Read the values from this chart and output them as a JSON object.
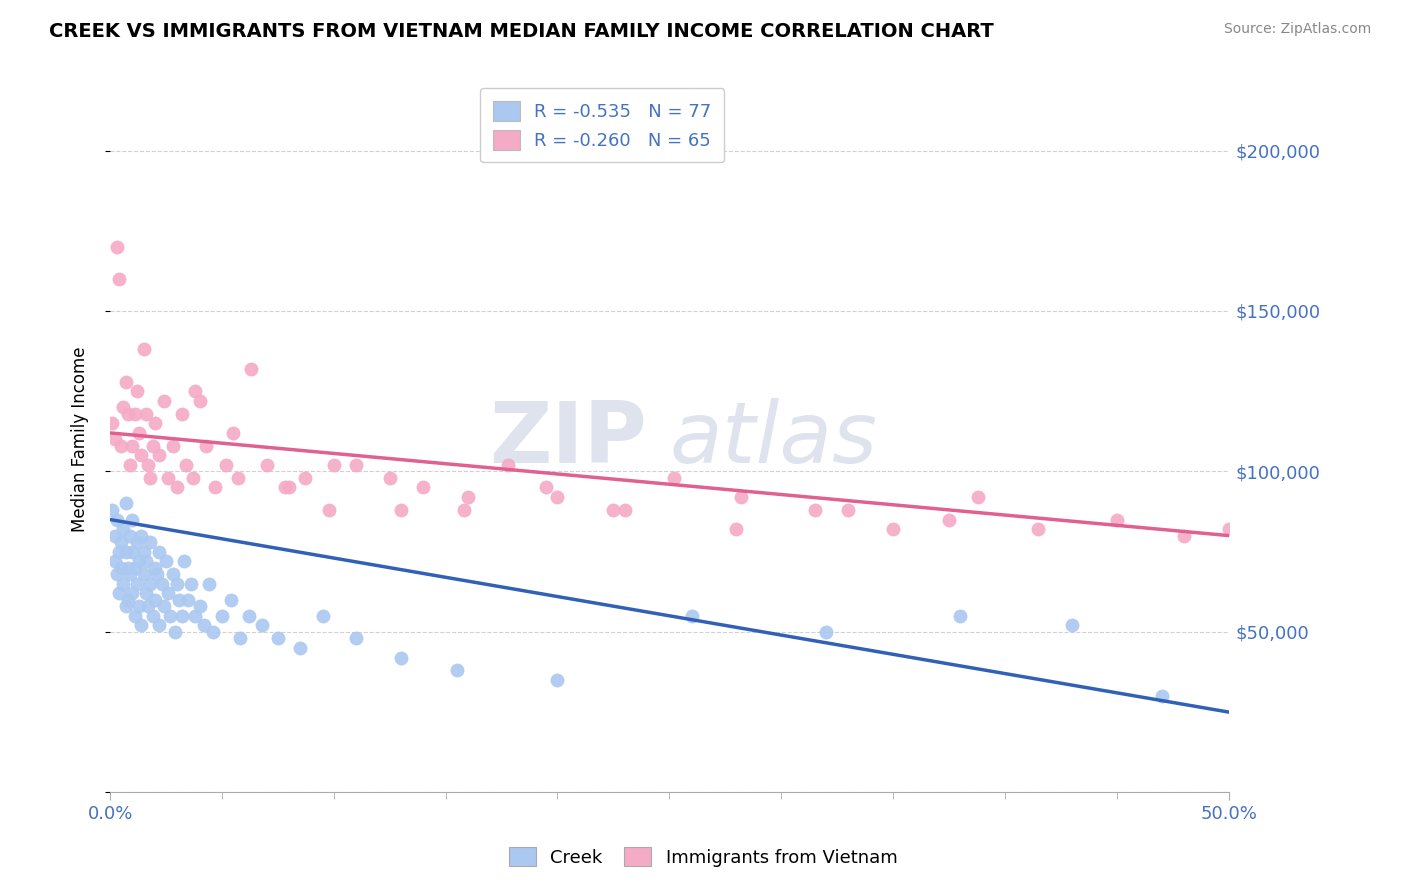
{
  "title": "CREEK VS IMMIGRANTS FROM VIETNAM MEDIAN FAMILY INCOME CORRELATION CHART",
  "source": "Source: ZipAtlas.com",
  "ylabel": "Median Family Income",
  "xmin": 0.0,
  "xmax": 0.5,
  "ymin": 0,
  "ymax": 220000,
  "yticks": [
    0,
    50000,
    100000,
    150000,
    200000
  ],
  "legend_creek_R": "-0.535",
  "legend_creek_N": "77",
  "legend_vietnam_R": "-0.260",
  "legend_vietnam_N": "65",
  "creek_color": "#aac8f0",
  "vietnam_color": "#f5aac5",
  "creek_line_color": "#3060b8",
  "vietnam_line_color": "#e06090",
  "watermark_zip": "ZIP",
  "watermark_atlas": "atlas",
  "creek_scatter_x": [
    0.001,
    0.002,
    0.002,
    0.003,
    0.003,
    0.004,
    0.004,
    0.005,
    0.005,
    0.006,
    0.006,
    0.007,
    0.007,
    0.007,
    0.008,
    0.008,
    0.009,
    0.009,
    0.01,
    0.01,
    0.01,
    0.011,
    0.011,
    0.012,
    0.012,
    0.013,
    0.013,
    0.014,
    0.014,
    0.015,
    0.015,
    0.016,
    0.016,
    0.017,
    0.018,
    0.018,
    0.019,
    0.02,
    0.02,
    0.021,
    0.022,
    0.022,
    0.023,
    0.024,
    0.025,
    0.026,
    0.027,
    0.028,
    0.029,
    0.03,
    0.031,
    0.032,
    0.033,
    0.035,
    0.036,
    0.038,
    0.04,
    0.042,
    0.044,
    0.046,
    0.05,
    0.054,
    0.058,
    0.062,
    0.068,
    0.075,
    0.085,
    0.095,
    0.11,
    0.13,
    0.155,
    0.2,
    0.26,
    0.32,
    0.38,
    0.43,
    0.47
  ],
  "creek_scatter_y": [
    88000,
    80000,
    72000,
    85000,
    68000,
    75000,
    62000,
    78000,
    70000,
    82000,
    65000,
    75000,
    58000,
    90000,
    70000,
    60000,
    80000,
    68000,
    75000,
    62000,
    85000,
    70000,
    55000,
    78000,
    65000,
    72000,
    58000,
    80000,
    52000,
    75000,
    68000,
    62000,
    72000,
    58000,
    78000,
    65000,
    55000,
    70000,
    60000,
    68000,
    75000,
    52000,
    65000,
    58000,
    72000,
    62000,
    55000,
    68000,
    50000,
    65000,
    60000,
    55000,
    72000,
    60000,
    65000,
    55000,
    58000,
    52000,
    65000,
    50000,
    55000,
    60000,
    48000,
    55000,
    52000,
    48000,
    45000,
    55000,
    48000,
    42000,
    38000,
    35000,
    55000,
    50000,
    55000,
    52000,
    30000
  ],
  "vietnam_scatter_x": [
    0.001,
    0.002,
    0.003,
    0.004,
    0.005,
    0.006,
    0.007,
    0.008,
    0.009,
    0.01,
    0.011,
    0.012,
    0.013,
    0.014,
    0.015,
    0.016,
    0.017,
    0.018,
    0.019,
    0.02,
    0.022,
    0.024,
    0.026,
    0.028,
    0.03,
    0.032,
    0.034,
    0.037,
    0.04,
    0.043,
    0.047,
    0.052,
    0.057,
    0.063,
    0.07,
    0.078,
    0.087,
    0.098,
    0.11,
    0.125,
    0.14,
    0.158,
    0.178,
    0.2,
    0.225,
    0.252,
    0.282,
    0.315,
    0.35,
    0.388,
    0.038,
    0.055,
    0.08,
    0.1,
    0.13,
    0.16,
    0.195,
    0.23,
    0.28,
    0.33,
    0.375,
    0.415,
    0.45,
    0.48,
    0.5
  ],
  "vietnam_scatter_y": [
    115000,
    110000,
    170000,
    160000,
    108000,
    120000,
    128000,
    118000,
    102000,
    108000,
    118000,
    125000,
    112000,
    105000,
    138000,
    118000,
    102000,
    98000,
    108000,
    115000,
    105000,
    122000,
    98000,
    108000,
    95000,
    118000,
    102000,
    98000,
    122000,
    108000,
    95000,
    102000,
    98000,
    132000,
    102000,
    95000,
    98000,
    88000,
    102000,
    98000,
    95000,
    88000,
    102000,
    92000,
    88000,
    98000,
    92000,
    88000,
    82000,
    92000,
    125000,
    112000,
    95000,
    102000,
    88000,
    92000,
    95000,
    88000,
    82000,
    88000,
    85000,
    82000,
    85000,
    80000,
    82000
  ]
}
